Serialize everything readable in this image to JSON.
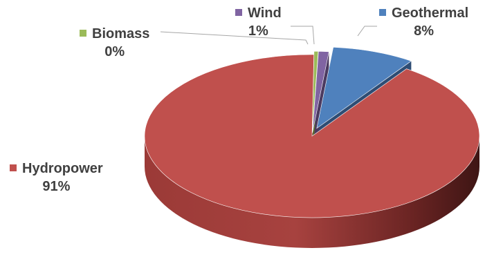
{
  "chart_data": {
    "type": "pie",
    "title": "",
    "slices": [
      {
        "name": "Geothermal",
        "value": 8,
        "label": "8%",
        "color": "#4F81BD",
        "shade": "#2E4D74"
      },
      {
        "name": "Hydropower",
        "value": 91,
        "label": "91%",
        "color": "#C0504D",
        "shade": "#6E2423"
      },
      {
        "name": "Biomass",
        "value": 0,
        "label": "0%",
        "color": "#9BBB59",
        "shade": "#5B7032"
      },
      {
        "name": "Wind",
        "value": 1,
        "label": "1%",
        "color": "#8064A2",
        "shade": "#4B3A60"
      }
    ],
    "style": "3d-exploded",
    "legend": "labels-with-keys"
  }
}
